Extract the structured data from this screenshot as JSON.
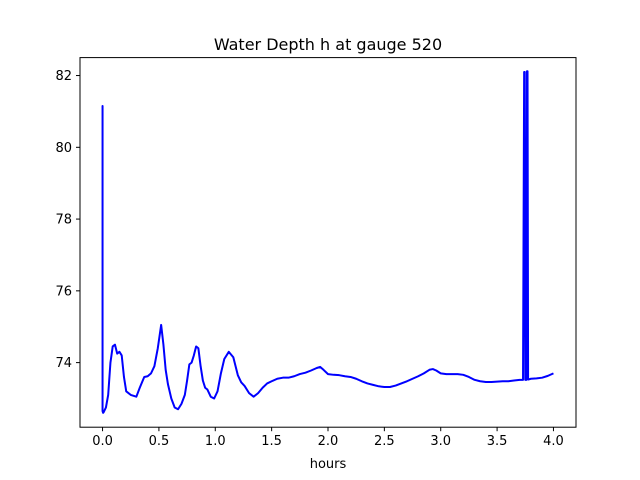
{
  "chart_data": {
    "type": "line",
    "title": "Water Depth h at gauge 520",
    "xlabel": "hours",
    "ylabel": "",
    "xlim": [
      -0.2,
      4.2
    ],
    "ylim": [
      72.2,
      82.5
    ],
    "xticks": [
      0.0,
      0.5,
      1.0,
      1.5,
      2.0,
      2.5,
      3.0,
      3.5,
      4.0
    ],
    "xtick_labels": [
      "0.0",
      "0.5",
      "1.0",
      "1.5",
      "2.0",
      "2.5",
      "3.0",
      "3.5",
      "4.0"
    ],
    "yticks": [
      74,
      76,
      78,
      80,
      82
    ],
    "ytick_labels": [
      "74",
      "76",
      "78",
      "80",
      "82"
    ],
    "grid": false,
    "line_color": "#0000ff",
    "series": [
      {
        "x": [
          0.0,
          0.0,
          0.0,
          0.005,
          0.01,
          0.03,
          0.05,
          0.07,
          0.09,
          0.11,
          0.13,
          0.15,
          0.17,
          0.19,
          0.21,
          0.25,
          0.3,
          0.33,
          0.37,
          0.4,
          0.43,
          0.46,
          0.49,
          0.52,
          0.54,
          0.56,
          0.58,
          0.61,
          0.64,
          0.67,
          0.7,
          0.73,
          0.75,
          0.77,
          0.79,
          0.81,
          0.83,
          0.85,
          0.87,
          0.89,
          0.91,
          0.93,
          0.96,
          0.99,
          1.02,
          1.05,
          1.08,
          1.12,
          1.16,
          1.2,
          1.23,
          1.26,
          1.3,
          1.34,
          1.38,
          1.42,
          1.46,
          1.5,
          1.55,
          1.6,
          1.65,
          1.7,
          1.75,
          1.8,
          1.85,
          1.9,
          1.93,
          1.96,
          2.0,
          2.05,
          2.1,
          2.15,
          2.2,
          2.25,
          2.3,
          2.35,
          2.4,
          2.45,
          2.5,
          2.55,
          2.6,
          2.65,
          2.7,
          2.75,
          2.8,
          2.85,
          2.9,
          2.93,
          2.96,
          3.0,
          3.05,
          3.1,
          3.15,
          3.2,
          3.25,
          3.3,
          3.35,
          3.4,
          3.45,
          3.5,
          3.55,
          3.6,
          3.65,
          3.7,
          3.73,
          3.74,
          3.745,
          3.75,
          3.755,
          3.76,
          3.765,
          3.77,
          3.775,
          3.78,
          3.8,
          3.85,
          3.9,
          3.95,
          4.0
        ],
        "y": [
          80.9,
          81.15,
          72.65,
          72.6,
          72.62,
          72.75,
          73.1,
          74.0,
          74.45,
          74.5,
          74.25,
          74.3,
          74.2,
          73.6,
          73.2,
          73.1,
          73.05,
          73.3,
          73.6,
          73.62,
          73.7,
          73.9,
          74.4,
          75.05,
          74.5,
          73.8,
          73.4,
          73.0,
          72.75,
          72.7,
          72.85,
          73.1,
          73.5,
          73.95,
          74.0,
          74.2,
          74.45,
          74.4,
          73.9,
          73.5,
          73.3,
          73.25,
          73.05,
          73.0,
          73.2,
          73.7,
          74.1,
          74.3,
          74.15,
          73.65,
          73.45,
          73.35,
          73.15,
          73.05,
          73.15,
          73.3,
          73.42,
          73.48,
          73.55,
          73.58,
          73.58,
          73.62,
          73.68,
          73.72,
          73.78,
          73.85,
          73.88,
          73.8,
          73.68,
          73.66,
          73.65,
          73.62,
          73.6,
          73.55,
          73.48,
          73.42,
          73.38,
          73.34,
          73.32,
          73.32,
          73.36,
          73.42,
          73.48,
          73.55,
          73.62,
          73.7,
          73.8,
          73.82,
          73.78,
          73.7,
          73.68,
          73.68,
          73.68,
          73.66,
          73.6,
          73.52,
          73.48,
          73.46,
          73.46,
          73.47,
          73.48,
          73.48,
          73.5,
          73.52,
          73.52,
          82.1,
          82.1,
          73.52,
          73.52,
          73.52,
          82.12,
          82.12,
          73.53,
          73.53,
          73.55,
          73.56,
          73.58,
          73.63,
          73.7
        ]
      }
    ]
  }
}
